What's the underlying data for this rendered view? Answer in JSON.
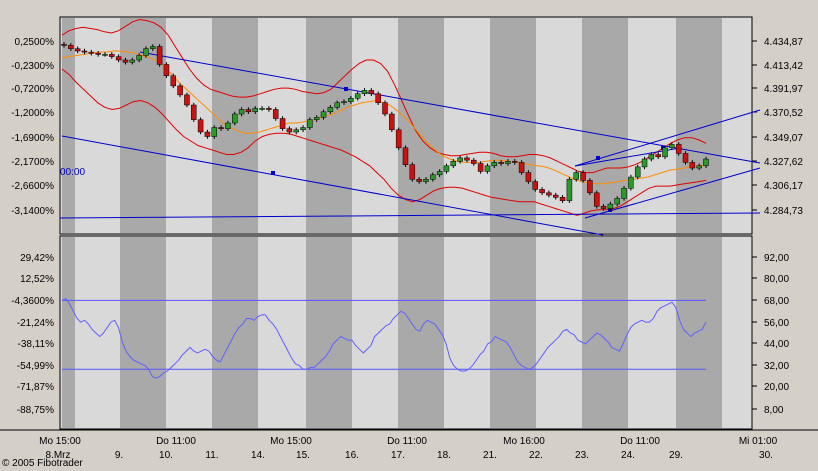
{
  "copyright": "© 2005 Fibotrader",
  "cursor_label": "00:00",
  "chart_data": [
    {
      "type": "candlestick",
      "left_ticks": [
        "0,2500%",
        "-0,2300%",
        "-0,7200%",
        "-1,2000%",
        "-1,6900%",
        "-2,1700%",
        "-2,6600%",
        "-3,1400%"
      ],
      "right_ticks": [
        "4.434,87",
        "4.413,42",
        "4.391,97",
        "4.370,52",
        "4.349,07",
        "4.327,62",
        "4.306,17",
        "4.284,73"
      ],
      "ylim": [
        4280,
        4438
      ],
      "x_ticks_top": [
        "Mo 15:00",
        "Do 11:00",
        "Mo 15:00",
        "Do 11:00",
        "Mo 16:00",
        "Do 11:00",
        "Mi 01:00"
      ],
      "x_ticks_bottom": [
        "8.Mrz",
        "9.",
        "10.",
        "11.",
        "14.",
        "15.",
        "16.",
        "17.",
        "18.",
        "21.",
        "22.",
        "23.",
        "24.",
        "29.",
        "30."
      ],
      "close": [
        4431,
        4428,
        4426,
        4425,
        4424,
        4423,
        4423,
        4421,
        4418,
        4416,
        4418,
        4422,
        4428,
        4430,
        4414,
        4404,
        4395,
        4387,
        4378,
        4365,
        4354,
        4350,
        4358,
        4357,
        4362,
        4370,
        4374,
        4372,
        4375,
        4375,
        4374,
        4366,
        4357,
        4354,
        4356,
        4358,
        4365,
        4367,
        4372,
        4376,
        4380,
        4381,
        4384,
        4388,
        4391,
        4388,
        4380,
        4370,
        4356,
        4340,
        4325,
        4312,
        4310,
        4312,
        4316,
        4319,
        4324,
        4328,
        4331,
        4329,
        4326,
        4319,
        4324,
        4327,
        4326,
        4328,
        4327,
        4318,
        4310,
        4303,
        4300,
        4298,
        4296,
        4293,
        4312,
        4318,
        4311,
        4300,
        4288,
        4286,
        4290,
        4295,
        4304,
        4314,
        4323,
        4330,
        4334,
        4332,
        4340,
        4343,
        4335,
        4327,
        4322,
        4324,
        4330
      ],
      "upper_band": [
        4440,
        4444,
        4446,
        4447,
        4446,
        4445,
        4443,
        4442,
        4444,
        4448,
        4452,
        4454,
        4453,
        4451,
        4447,
        4440,
        4430,
        4420,
        4410,
        4402,
        4396,
        4392,
        4390,
        4388,
        4386,
        4385,
        4385,
        4386,
        4388,
        4390,
        4392,
        4393,
        4393,
        4392,
        4390,
        4389,
        4388,
        4389,
        4392,
        4398,
        4404,
        4410,
        4415,
        4418,
        4418,
        4415,
        4408,
        4396,
        4382,
        4368,
        4355,
        4346,
        4340,
        4336,
        4334,
        4333,
        4333,
        4334,
        4335,
        4336,
        4336,
        4335,
        4333,
        4332,
        4332,
        4333,
        4334,
        4334,
        4333,
        4331,
        4328,
        4325,
        4322,
        4319,
        4318,
        4318,
        4320,
        4322,
        4322,
        4322,
        4323,
        4325,
        4328,
        4332,
        4336,
        4340,
        4344,
        4347,
        4349,
        4349,
        4347,
        4344
      ],
      "middle_band": [
        4420,
        4421,
        4422,
        4423,
        4424,
        4425,
        4425,
        4426,
        4426,
        4425,
        4424,
        4422,
        4420,
        4417,
        4412,
        4405,
        4398,
        4392,
        4386,
        4380,
        4374,
        4368,
        4362,
        4358,
        4355,
        4353,
        4353,
        4354,
        4356,
        4358,
        4360,
        4362,
        4362,
        4363,
        4364,
        4366,
        4368,
        4370,
        4373,
        4376,
        4378,
        4380,
        4381,
        4382,
        4380,
        4377,
        4372,
        4366,
        4359,
        4351,
        4344,
        4338,
        4333,
        4330,
        4328,
        4327,
        4327,
        4327,
        4328,
        4329,
        4329,
        4328,
        4327,
        4326,
        4325,
        4324,
        4323,
        4321,
        4318,
        4315,
        4312,
        4310,
        4309,
        4308,
        4308,
        4309,
        4310,
        4311,
        4312,
        4313,
        4314,
        4316,
        4318,
        4320,
        4321,
        4322,
        4323,
        4324,
        4325
      ],
      "lower_band": [
        4410,
        4405,
        4398,
        4392,
        4386,
        4380,
        4376,
        4374,
        4375,
        4378,
        4381,
        4382,
        4380,
        4376,
        4370,
        4363,
        4356,
        4350,
        4346,
        4342,
        4340,
        4338,
        4336,
        4334,
        4334,
        4336,
        4340,
        4346,
        4350,
        4352,
        4353,
        4353,
        4352,
        4350,
        4348,
        4346,
        4344,
        4342,
        4340,
        4338,
        4335,
        4332,
        4328,
        4324,
        4318,
        4312,
        4304,
        4298,
        4294,
        4292,
        4294,
        4298,
        4302,
        4304,
        4305,
        4305,
        4304,
        4302,
        4300,
        4298,
        4296,
        4295,
        4294,
        4293,
        4292,
        4292,
        4292,
        4290,
        4288,
        4286,
        4284,
        4282,
        4280,
        4282,
        4284,
        4285,
        4285,
        4286,
        4288,
        4292,
        4296,
        4300,
        4304,
        4306,
        4306,
        4306,
        4307,
        4308,
        4309,
        4310,
        4311
      ]
    },
    {
      "type": "line",
      "left_ticks": [
        "29,42%",
        "12,52%",
        "-4,3600%",
        "-21,24%",
        "-38,11%",
        "-54,99%",
        "-71,87%",
        "-88,75%"
      ],
      "right_ticks": [
        "92,00",
        "80,00",
        "68,00",
        "56,00",
        "44,00",
        "32,00",
        "20,00",
        "8,00"
      ],
      "ylim": [
        0,
        98
      ],
      "reference_lines": [
        68,
        30
      ],
      "values": [
        68,
        69,
        66,
        62,
        58,
        56,
        57,
        55,
        52,
        50,
        48,
        50,
        53,
        56,
        57,
        53,
        45,
        40,
        37,
        35,
        34,
        33,
        32,
        30,
        26,
        25,
        26,
        28,
        29,
        31,
        33,
        35,
        38,
        40,
        42,
        40,
        39,
        40,
        41,
        40,
        37,
        35,
        34,
        38,
        42,
        46,
        50,
        53,
        55,
        58,
        58,
        57,
        59,
        60,
        60,
        57,
        55,
        52,
        48,
        44,
        40,
        36,
        33,
        32,
        30,
        30,
        31,
        31,
        33,
        35,
        37,
        40,
        44,
        46,
        48,
        47,
        46,
        46,
        43,
        41,
        39,
        41,
        43,
        48,
        50,
        52,
        54,
        55,
        58,
        60,
        62,
        61,
        58,
        55,
        52,
        51,
        55,
        57,
        56,
        55,
        52,
        49,
        44,
        36,
        32,
        30,
        29,
        29,
        30,
        32,
        35,
        38,
        40,
        44,
        45,
        48,
        47,
        46,
        45,
        42,
        38,
        34,
        32,
        31,
        30,
        31,
        33,
        36,
        39,
        42,
        44,
        46,
        48,
        51,
        52,
        50,
        49,
        46,
        45,
        44,
        46,
        48,
        50,
        49,
        47,
        45,
        42,
        41,
        40,
        44,
        49,
        53,
        55,
        56,
        57,
        56,
        56,
        58,
        62,
        64,
        65,
        66,
        67,
        64,
        57,
        52,
        50,
        48,
        50,
        51,
        52,
        56
      ]
    }
  ]
}
